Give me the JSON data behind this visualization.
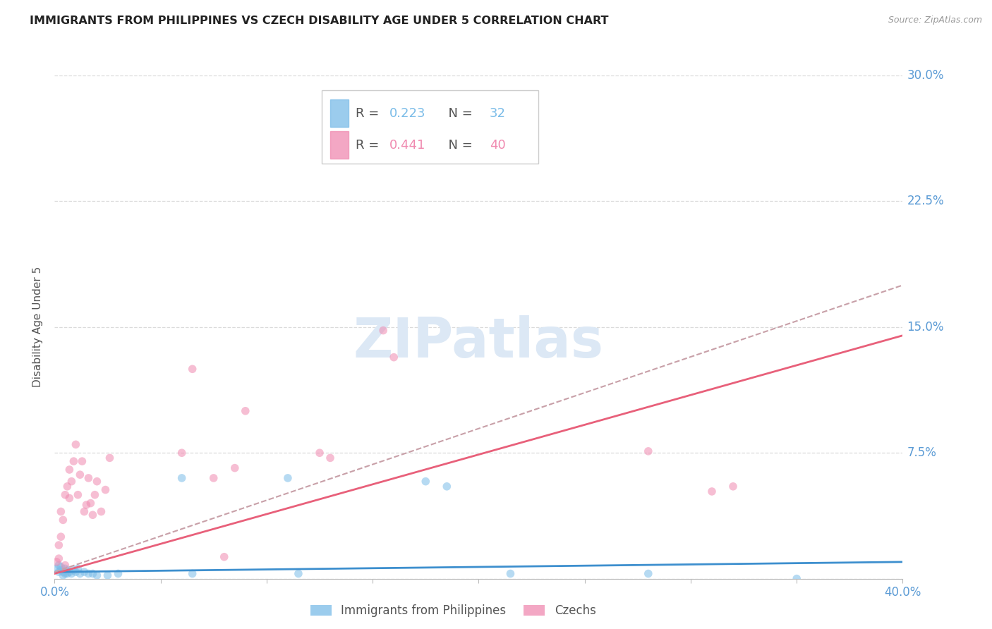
{
  "title": "IMMIGRANTS FROM PHILIPPINES VS CZECH DISABILITY AGE UNDER 5 CORRELATION CHART",
  "source": "Source: ZipAtlas.com",
  "ylabel": "Disability Age Under 5",
  "xlim": [
    0.0,
    0.4
  ],
  "ylim": [
    0.0,
    0.3
  ],
  "yticks": [
    0.0,
    0.075,
    0.15,
    0.225,
    0.3
  ],
  "ytick_labels": [
    "",
    "7.5%",
    "15.0%",
    "22.5%",
    "30.0%"
  ],
  "xticks": [
    0.0,
    0.05,
    0.1,
    0.15,
    0.2,
    0.25,
    0.3,
    0.35,
    0.4
  ],
  "xtick_labels": [
    "0.0%",
    "",
    "",
    "",
    "",
    "",
    "",
    "",
    "40.0%"
  ],
  "phil_R": "0.223",
  "phil_N": "32",
  "czech_R": "0.441",
  "czech_N": "40",
  "philippines_scatter_x": [
    0.001,
    0.002,
    0.002,
    0.003,
    0.003,
    0.004,
    0.004,
    0.005,
    0.005,
    0.006,
    0.006,
    0.007,
    0.008,
    0.009,
    0.01,
    0.011,
    0.012,
    0.014,
    0.016,
    0.018,
    0.02,
    0.025,
    0.03,
    0.06,
    0.065,
    0.11,
    0.115,
    0.175,
    0.185,
    0.215,
    0.28,
    0.35
  ],
  "philippines_scatter_y": [
    0.006,
    0.008,
    0.004,
    0.007,
    0.005,
    0.004,
    0.002,
    0.006,
    0.003,
    0.005,
    0.003,
    0.004,
    0.003,
    0.005,
    0.004,
    0.006,
    0.003,
    0.004,
    0.003,
    0.003,
    0.002,
    0.002,
    0.003,
    0.06,
    0.003,
    0.06,
    0.003,
    0.058,
    0.055,
    0.003,
    0.003,
    0.0
  ],
  "czech_scatter_x": [
    0.001,
    0.002,
    0.002,
    0.003,
    0.003,
    0.004,
    0.005,
    0.005,
    0.006,
    0.007,
    0.007,
    0.008,
    0.009,
    0.01,
    0.011,
    0.012,
    0.013,
    0.014,
    0.015,
    0.016,
    0.017,
    0.018,
    0.019,
    0.02,
    0.022,
    0.024,
    0.026,
    0.06,
    0.065,
    0.075,
    0.08,
    0.085,
    0.09,
    0.125,
    0.13,
    0.155,
    0.16,
    0.28,
    0.31,
    0.32
  ],
  "czech_scatter_y": [
    0.01,
    0.012,
    0.02,
    0.025,
    0.04,
    0.035,
    0.008,
    0.05,
    0.055,
    0.048,
    0.065,
    0.058,
    0.07,
    0.08,
    0.05,
    0.062,
    0.07,
    0.04,
    0.044,
    0.06,
    0.045,
    0.038,
    0.05,
    0.058,
    0.04,
    0.053,
    0.072,
    0.075,
    0.125,
    0.06,
    0.013,
    0.066,
    0.1,
    0.075,
    0.072,
    0.148,
    0.132,
    0.076,
    0.052,
    0.055
  ],
  "phil_line_x0": 0.0,
  "phil_line_x1": 0.4,
  "phil_line_y0": 0.004,
  "phil_line_y1": 0.01,
  "czech_line_x0": 0.0,
  "czech_line_x1": 0.4,
  "czech_line_y0": 0.003,
  "czech_line_y1": 0.145,
  "dashed_line_x0": 0.0,
  "dashed_line_x1": 0.4,
  "dashed_line_y0": 0.004,
  "dashed_line_y1": 0.175,
  "scatter_alpha": 0.55,
  "scatter_size": 70,
  "philippines_color": "#7abce8",
  "czech_color": "#f08ab0",
  "philippines_line_color": "#3d8fce",
  "czech_line_color": "#e8607a",
  "dashed_line_color": "#c8a0a8",
  "background_color": "#ffffff",
  "grid_color": "#d8d8d8",
  "title_fontsize": 11.5,
  "axis_label_fontsize": 11,
  "tick_label_color": "#5b9bd5",
  "tick_label_fontsize": 12,
  "watermark_text": "ZIPatlas",
  "watermark_color": "#dce8f5",
  "source_text": "Source: ZipAtlas.com"
}
